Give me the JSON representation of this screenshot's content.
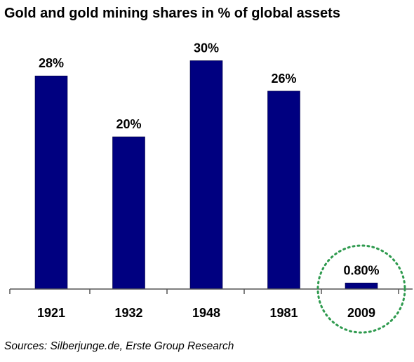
{
  "chart_data": {
    "type": "bar",
    "title": "Gold and gold mining shares in % of global assets",
    "categories": [
      "1921",
      "1932",
      "1948",
      "1981",
      "2009"
    ],
    "values": [
      28,
      20,
      30,
      26,
      0.8
    ],
    "data_labels": [
      "28%",
      "20%",
      "30%",
      "26%",
      "0.80%"
    ],
    "ylim": [
      0,
      30
    ],
    "grid": false,
    "legend": "none",
    "highlight": {
      "category": "2009",
      "shape": "dotted-circle"
    },
    "source": "Sources: Silberjunge.de, Erste Group Research",
    "colors": {
      "bar": "#000080",
      "axis": "#555555",
      "highlight": "#2e9a4e"
    }
  }
}
